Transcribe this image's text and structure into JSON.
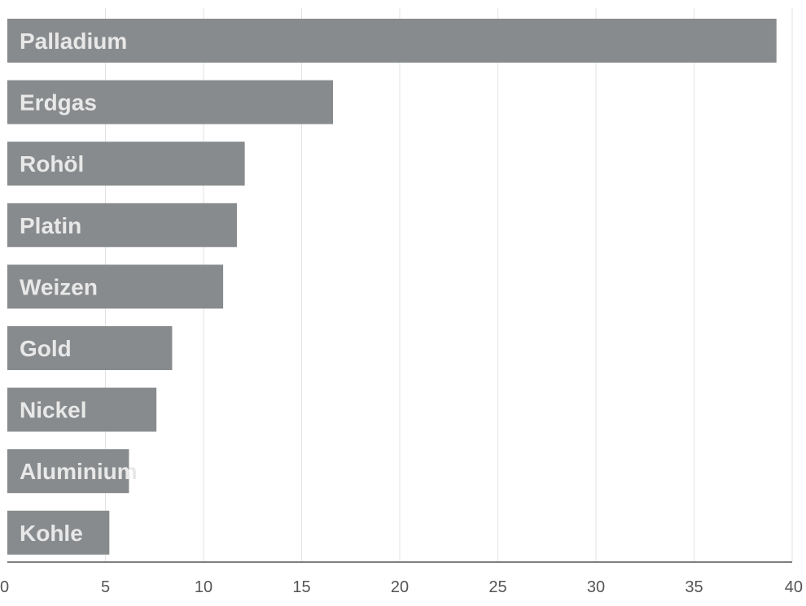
{
  "chart_data": {
    "type": "bar",
    "orientation": "horizontal",
    "categories": [
      "Palladium",
      "Erdgas",
      "Rohöl",
      "Platin",
      "Weizen",
      "Gold",
      "Nickel",
      "Aluminium",
      "Kohle"
    ],
    "values": [
      39.2,
      16.6,
      12.1,
      11.7,
      11.0,
      8.4,
      7.6,
      6.2,
      5.2
    ],
    "xlim": [
      0,
      40
    ],
    "xticks": [
      0,
      5,
      10,
      15,
      20,
      25,
      30,
      35,
      40
    ],
    "title": "",
    "xlabel": "",
    "ylabel": "",
    "grid": "vertical",
    "legend": "none",
    "colors": {
      "bar": "#888b8d",
      "label": "#e8e8e8",
      "grid": "#e3e3e3",
      "axis": "#555555"
    }
  }
}
